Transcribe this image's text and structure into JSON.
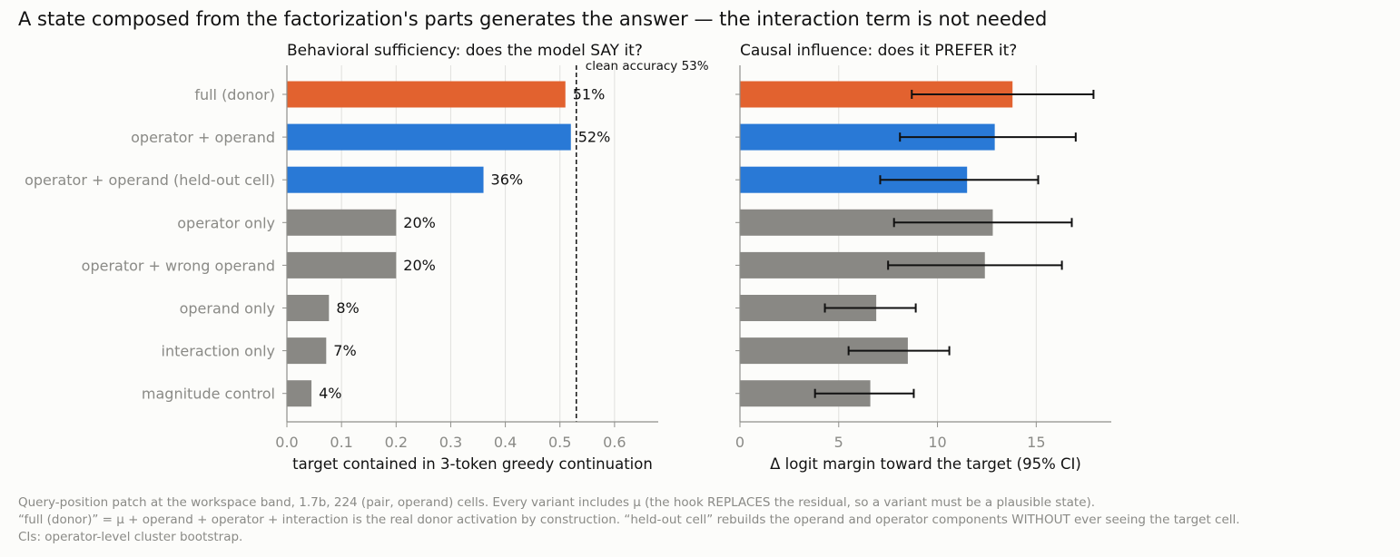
{
  "suptitle": "A state composed from the factorization's parts generates the answer — the interaction term is not needed",
  "colors": {
    "donor": "#e2622f",
    "composed": "#2979d6",
    "other": "#898884",
    "tick_text": "#8a8a86",
    "axis": "#8f8f8b",
    "grid": "#e0e0dd"
  },
  "chart_data": [
    {
      "type": "bar",
      "orientation": "horizontal",
      "title": "Behavioral sufficiency: does the model SAY it?",
      "xlabel": "target contained in 3-token greedy continuation",
      "xlim": [
        0,
        0.68
      ],
      "xticks": [
        0.0,
        0.1,
        0.2,
        0.3,
        0.4,
        0.5,
        0.6
      ],
      "xtick_labels": [
        "0.0",
        "0.1",
        "0.2",
        "0.3",
        "0.4",
        "0.5",
        "0.6"
      ],
      "grid": "vertical",
      "categories": [
        "full (donor)",
        "operator + operand",
        "operator + operand (held-out cell)",
        "operator only",
        "operator + wrong operand",
        "operand only",
        "interaction only",
        "magnitude control"
      ],
      "values": [
        0.51,
        0.52,
        0.36,
        0.2,
        0.2,
        0.077,
        0.072,
        0.045
      ],
      "data_labels": [
        "51%",
        "52%",
        "36%",
        "20%",
        "20%",
        "8%",
        "7%",
        "4%"
      ],
      "color_groups": [
        "donor",
        "composed",
        "composed",
        "other",
        "other",
        "other",
        "other",
        "other"
      ],
      "reference_line": {
        "value": 0.53,
        "style": "dashed",
        "label": "clean accuracy 53%"
      }
    },
    {
      "type": "bar",
      "orientation": "horizontal",
      "title": "Causal influence: does it PREFER it?",
      "xlabel": "Δ logit margin toward the target (95% CI)",
      "xlim": [
        0,
        18.8
      ],
      "xticks": [
        0,
        5,
        10,
        15
      ],
      "xtick_labels": [
        "0",
        "5",
        "10",
        "15"
      ],
      "grid": "vertical",
      "categories": [
        "full (donor)",
        "operator + operand",
        "operator + operand (held-out cell)",
        "operator only",
        "operator + wrong operand",
        "operand only",
        "interaction only",
        "magnitude control"
      ],
      "values": [
        13.8,
        12.9,
        11.5,
        12.8,
        12.4,
        6.9,
        8.5,
        6.6
      ],
      "ci_low": [
        8.7,
        8.1,
        7.1,
        7.8,
        7.5,
        4.3,
        5.5,
        3.8
      ],
      "ci_high": [
        17.9,
        17.0,
        15.1,
        16.8,
        16.3,
        8.9,
        10.6,
        8.8
      ],
      "color_groups": [
        "donor",
        "composed",
        "composed",
        "other",
        "other",
        "other",
        "other",
        "other"
      ]
    }
  ],
  "notes": [
    "Query-position patch at the workspace band, 1.7b, 224 (pair, operand) cells. Every variant includes μ (the hook REPLACES the residual, so a variant must be a plausible state).",
    "“full (donor)” = μ + operand + operator + interaction is the real donor activation by construction. “held-out cell” rebuilds the operand and operator components WITHOUT ever seeing the target cell.",
    "CIs: operator-level cluster bootstrap."
  ]
}
